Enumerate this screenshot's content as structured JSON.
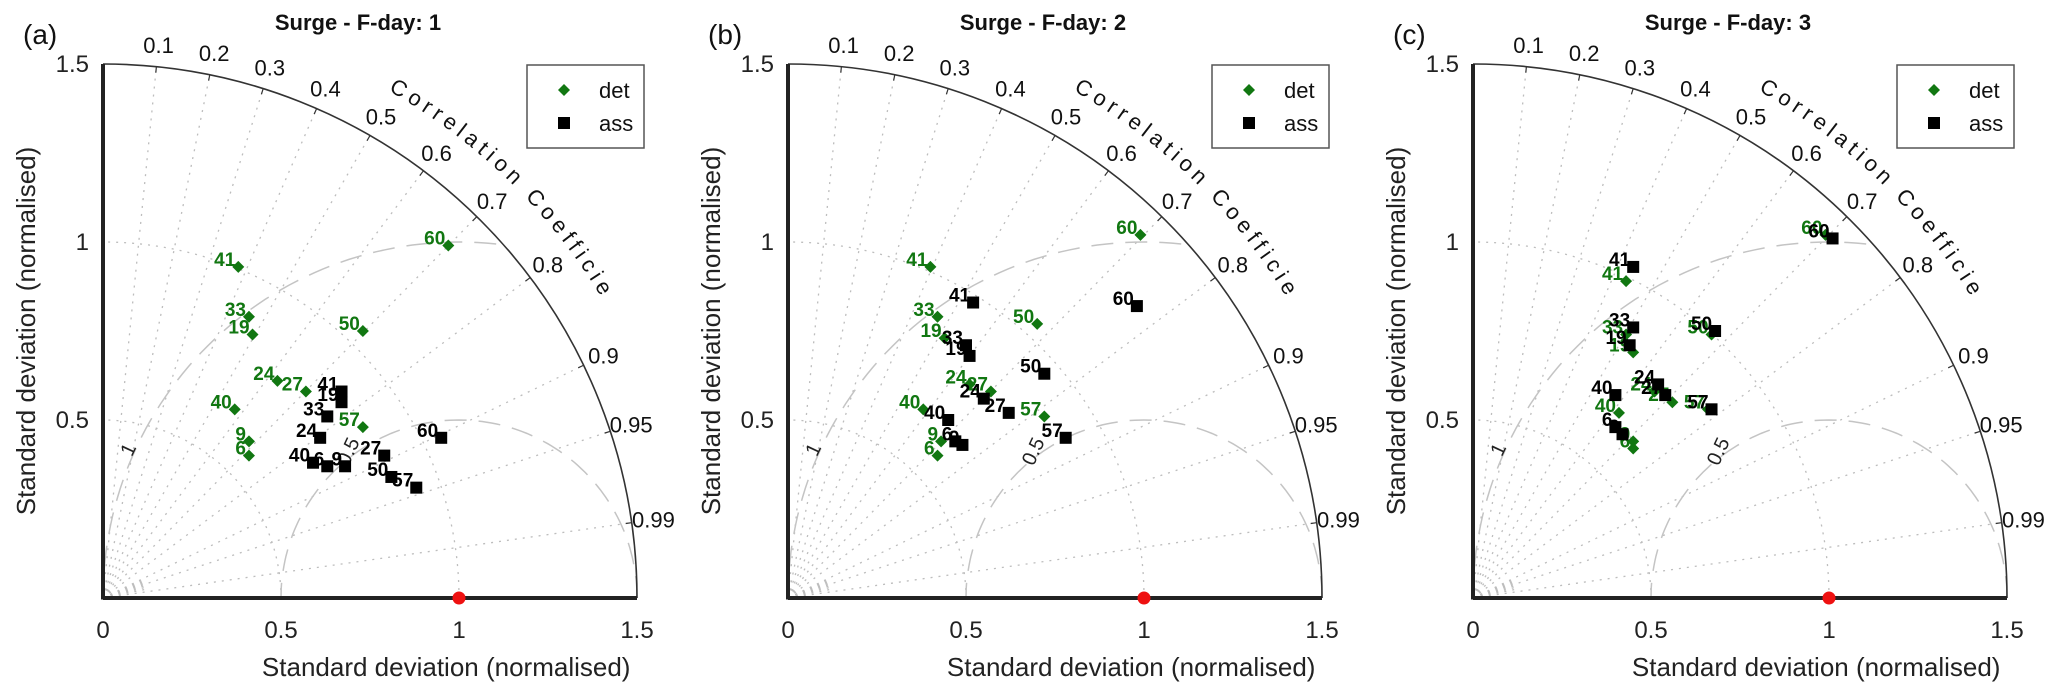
{
  "chart_data": [
    {
      "type": "scatter",
      "subtype": "taylor-diagram",
      "panel_tag": "(a)",
      "title": "Surge - F-day: 1",
      "xlabel": "Standard deviation (normalised)",
      "ylabel": "Standard deviation (normalised)",
      "corr_title": "Correlation Coefficient",
      "std_range": [
        0,
        1.5
      ],
      "std_ticks": [
        "0",
        "0.5",
        "1",
        "1.5"
      ],
      "y_ticks": [
        "0.5",
        "1",
        "1.5"
      ],
      "corr_ticks": [
        "0.1",
        "0.2",
        "0.3",
        "0.4",
        "0.5",
        "0.6",
        "0.7",
        "0.8",
        "0.9",
        "0.95",
        "0.99"
      ],
      "rms_arcs": [
        "0.5",
        "1"
      ],
      "reference": {
        "std": 1.0,
        "color": "#ee1111"
      },
      "legend": {
        "position": "top-right",
        "entries": [
          "det",
          "ass"
        ]
      },
      "series": [
        {
          "name": "det",
          "marker": "diamond",
          "color": "#117711",
          "points": [
            {
              "label": "60",
              "x": 0.97,
              "y": 0.99
            },
            {
              "label": "41",
              "x": 0.38,
              "y": 0.93
            },
            {
              "label": "33",
              "x": 0.41,
              "y": 0.79
            },
            {
              "label": "19",
              "x": 0.42,
              "y": 0.74
            },
            {
              "label": "50",
              "x": 0.73,
              "y": 0.75
            },
            {
              "label": "24",
              "x": 0.49,
              "y": 0.61
            },
            {
              "label": "27",
              "x": 0.57,
              "y": 0.58
            },
            {
              "label": "40",
              "x": 0.37,
              "y": 0.53
            },
            {
              "label": "57",
              "x": 0.73,
              "y": 0.48
            },
            {
              "label": "9",
              "x": 0.41,
              "y": 0.44
            },
            {
              "label": "6",
              "x": 0.41,
              "y": 0.4
            }
          ]
        },
        {
          "name": "ass",
          "marker": "square",
          "color": "#000000",
          "points": [
            {
              "label": "41",
              "x": 0.67,
              "y": 0.58
            },
            {
              "label": "19",
              "x": 0.67,
              "y": 0.55
            },
            {
              "label": "33",
              "x": 0.63,
              "y": 0.51
            },
            {
              "label": "24",
              "x": 0.61,
              "y": 0.45
            },
            {
              "label": "60",
              "x": 0.95,
              "y": 0.45
            },
            {
              "label": "27",
              "x": 0.79,
              "y": 0.4
            },
            {
              "label": "40",
              "x": 0.59,
              "y": 0.38
            },
            {
              "label": "6",
              "x": 0.63,
              "y": 0.37
            },
            {
              "label": "9",
              "x": 0.68,
              "y": 0.37
            },
            {
              "label": "50",
              "x": 0.81,
              "y": 0.34
            },
            {
              "label": "57",
              "x": 0.88,
              "y": 0.31
            }
          ]
        }
      ]
    },
    {
      "type": "scatter",
      "subtype": "taylor-diagram",
      "panel_tag": "(b)",
      "title": "Surge - F-day: 2",
      "xlabel": "Standard deviation (normalised)",
      "ylabel": "Standard deviation (normalised)",
      "corr_title": "Correlation Coefficient",
      "std_range": [
        0,
        1.5
      ],
      "std_ticks": [
        "0",
        "0.5",
        "1",
        "1.5"
      ],
      "y_ticks": [
        "0.5",
        "1",
        "1.5"
      ],
      "corr_ticks": [
        "0.1",
        "0.2",
        "0.3",
        "0.4",
        "0.5",
        "0.6",
        "0.7",
        "0.8",
        "0.9",
        "0.95",
        "0.99"
      ],
      "rms_arcs": [
        "0.5",
        "1"
      ],
      "reference": {
        "std": 1.0,
        "color": "#ee1111"
      },
      "legend": {
        "position": "top-right",
        "entries": [
          "det",
          "ass"
        ]
      },
      "series": [
        {
          "name": "det",
          "marker": "diamond",
          "color": "#117711",
          "points": [
            {
              "label": "60",
              "x": 0.99,
              "y": 1.02
            },
            {
              "label": "41",
              "x": 0.4,
              "y": 0.93
            },
            {
              "label": "33",
              "x": 0.42,
              "y": 0.79
            },
            {
              "label": "50",
              "x": 0.7,
              "y": 0.77
            },
            {
              "label": "19",
              "x": 0.44,
              "y": 0.73
            },
            {
              "label": "24",
              "x": 0.51,
              "y": 0.6
            },
            {
              "label": "27",
              "x": 0.57,
              "y": 0.58
            },
            {
              "label": "40",
              "x": 0.38,
              "y": 0.53
            },
            {
              "label": "57",
              "x": 0.72,
              "y": 0.51
            },
            {
              "label": "9",
              "x": 0.43,
              "y": 0.44
            },
            {
              "label": "6",
              "x": 0.42,
              "y": 0.4
            }
          ]
        },
        {
          "name": "ass",
          "marker": "square",
          "color": "#000000",
          "points": [
            {
              "label": "41",
              "x": 0.52,
              "y": 0.83
            },
            {
              "label": "60",
              "x": 0.98,
              "y": 0.82
            },
            {
              "label": "33",
              "x": 0.5,
              "y": 0.71
            },
            {
              "label": "19",
              "x": 0.51,
              "y": 0.68
            },
            {
              "label": "50",
              "x": 0.72,
              "y": 0.63
            },
            {
              "label": "24",
              "x": 0.55,
              "y": 0.56
            },
            {
              "label": "27",
              "x": 0.62,
              "y": 0.52
            },
            {
              "label": "40",
              "x": 0.45,
              "y": 0.5
            },
            {
              "label": "57",
              "x": 0.78,
              "y": 0.45
            },
            {
              "label": "6",
              "x": 0.47,
              "y": 0.44
            },
            {
              "label": "9",
              "x": 0.49,
              "y": 0.43
            }
          ]
        }
      ]
    },
    {
      "type": "scatter",
      "subtype": "taylor-diagram",
      "panel_tag": "(c)",
      "title": "Surge - F-day: 3",
      "xlabel": "Standard deviation (normalised)",
      "ylabel": "Standard deviation (normalised)",
      "corr_title": "Correlation Coefficient",
      "std_range": [
        0,
        1.5
      ],
      "std_ticks": [
        "0",
        "0.5",
        "1",
        "1.5"
      ],
      "y_ticks": [
        "0.5",
        "1",
        "1.5"
      ],
      "corr_ticks": [
        "0.1",
        "0.2",
        "0.3",
        "0.4",
        "0.5",
        "0.6",
        "0.7",
        "0.8",
        "0.9",
        "0.95",
        "0.99"
      ],
      "rms_arcs": [
        "0.5",
        "1"
      ],
      "reference": {
        "std": 1.0,
        "color": "#ee1111"
      },
      "legend": {
        "position": "top-right",
        "entries": [
          "det",
          "ass"
        ]
      },
      "series": [
        {
          "name": "det",
          "marker": "diamond",
          "color": "#117711",
          "points": [
            {
              "label": "60",
              "x": 0.99,
              "y": 1.02
            },
            {
              "label": "41",
              "x": 0.43,
              "y": 0.89
            },
            {
              "label": "33",
              "x": 0.43,
              "y": 0.74
            },
            {
              "label": "50",
              "x": 0.67,
              "y": 0.74
            },
            {
              "label": "19",
              "x": 0.45,
              "y": 0.69
            },
            {
              "label": "24",
              "x": 0.51,
              "y": 0.58
            },
            {
              "label": "27",
              "x": 0.56,
              "y": 0.55
            },
            {
              "label": "57",
              "x": 0.66,
              "y": 0.53
            },
            {
              "label": "40",
              "x": 0.41,
              "y": 0.52
            },
            {
              "label": "9",
              "x": 0.45,
              "y": 0.44
            },
            {
              "label": "6",
              "x": 0.45,
              "y": 0.42
            }
          ]
        },
        {
          "name": "ass",
          "marker": "square",
          "color": "#000000",
          "points": [
            {
              "label": "60",
              "x": 1.01,
              "y": 1.01
            },
            {
              "label": "41",
              "x": 0.45,
              "y": 0.93
            },
            {
              "label": "33",
              "x": 0.45,
              "y": 0.76
            },
            {
              "label": "50",
              "x": 0.68,
              "y": 0.75
            },
            {
              "label": "19",
              "x": 0.44,
              "y": 0.71
            },
            {
              "label": "24",
              "x": 0.52,
              "y": 0.6
            },
            {
              "label": "40",
              "x": 0.4,
              "y": 0.57
            },
            {
              "label": "27",
              "x": 0.54,
              "y": 0.57
            },
            {
              "label": "57",
              "x": 0.67,
              "y": 0.53
            },
            {
              "label": "6",
              "x": 0.4,
              "y": 0.48
            },
            {
              "label": "9",
              "x": 0.42,
              "y": 0.46
            }
          ]
        }
      ]
    }
  ]
}
